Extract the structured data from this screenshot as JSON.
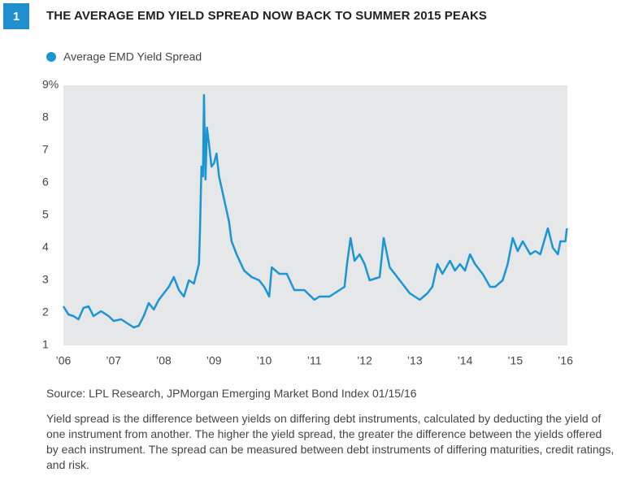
{
  "figure_number": "1",
  "chart_data": {
    "type": "line",
    "title": "THE AVERAGE EMD YIELD SPREAD NOW BACK TO SUMMER 2015 PEAKS",
    "source": "Source: LPL Research, JPMorgan Emerging Market Bond Index   01/15/16",
    "note": "Yield spread is the difference between yields on differing debt instruments, calculated by deducting the yield of one instrument from another. The higher the yield spread, the greater the difference between the yields offered by each instrument. The spread can be measured between debt instruments of differing maturities, credit ratings, and risk.",
    "x": [
      2006.0,
      2006.1,
      2006.2,
      2006.3,
      2006.4,
      2006.5,
      2006.6,
      2006.75,
      2006.9,
      2007.0,
      2007.15,
      2007.3,
      2007.4,
      2007.5,
      2007.6,
      2007.7,
      2007.8,
      2007.9,
      2008.0,
      2008.1,
      2008.2,
      2008.3,
      2008.4,
      2008.5,
      2008.6,
      2008.7,
      2008.72,
      2008.75,
      2008.78,
      2008.8,
      2008.83,
      2008.86,
      2008.9,
      2008.95,
      2009.0,
      2009.05,
      2009.1,
      2009.2,
      2009.3,
      2009.35,
      2009.45,
      2009.6,
      2009.75,
      2009.9,
      2010.0,
      2010.1,
      2010.15,
      2010.3,
      2010.45,
      2010.6,
      2010.8,
      2011.0,
      2011.1,
      2011.3,
      2011.5,
      2011.6,
      2011.65,
      2011.72,
      2011.8,
      2011.9,
      2012.0,
      2012.1,
      2012.3,
      2012.38,
      2012.5,
      2012.7,
      2012.8,
      2012.9,
      2013.0,
      2013.1,
      2013.25,
      2013.35,
      2013.45,
      2013.55,
      2013.7,
      2013.8,
      2013.9,
      2014.0,
      2014.1,
      2014.2,
      2014.35,
      2014.5,
      2014.6,
      2014.75,
      2014.85,
      2014.95,
      2015.05,
      2015.15,
      2015.3,
      2015.4,
      2015.5,
      2015.65,
      2015.75,
      2015.85,
      2015.9,
      2016.0,
      2016.03
    ],
    "series": [
      {
        "name": "Average EMD Yield Spread",
        "color": "#1a96d4",
        "values": [
          2.2,
          1.95,
          1.9,
          1.8,
          2.15,
          2.2,
          1.9,
          2.05,
          1.9,
          1.75,
          1.8,
          1.65,
          1.55,
          1.6,
          1.9,
          2.3,
          2.1,
          2.4,
          2.6,
          2.8,
          3.1,
          2.7,
          2.5,
          3.0,
          2.9,
          3.5,
          4.5,
          6.5,
          6.2,
          8.7,
          6.1,
          7.7,
          7.2,
          6.5,
          6.6,
          6.9,
          6.2,
          5.5,
          4.8,
          4.2,
          3.8,
          3.3,
          3.1,
          3.0,
          2.8,
          2.5,
          3.4,
          3.2,
          3.2,
          2.7,
          2.7,
          2.4,
          2.5,
          2.5,
          2.7,
          2.8,
          3.5,
          4.3,
          3.6,
          3.8,
          3.5,
          3.0,
          3.1,
          4.3,
          3.4,
          3.0,
          2.8,
          2.6,
          2.5,
          2.4,
          2.6,
          2.8,
          3.5,
          3.2,
          3.6,
          3.3,
          3.5,
          3.3,
          3.8,
          3.5,
          3.2,
          2.8,
          2.8,
          3.0,
          3.5,
          4.3,
          3.9,
          4.2,
          3.8,
          3.9,
          3.8,
          4.6,
          4.0,
          3.8,
          4.2,
          4.2,
          4.6
        ]
      }
    ],
    "xlim": [
      2006,
      2016.04
    ],
    "xticks": [
      {
        "value": 2006,
        "label": "’06"
      },
      {
        "value": 2007,
        "label": "’07"
      },
      {
        "value": 2008,
        "label": "’08"
      },
      {
        "value": 2009,
        "label": "’09"
      },
      {
        "value": 2010,
        "label": "’10"
      },
      {
        "value": 2011,
        "label": "’11"
      },
      {
        "value": 2012,
        "label": "’12"
      },
      {
        "value": 2013,
        "label": "’13"
      },
      {
        "value": 2014,
        "label": "’14"
      },
      {
        "value": 2015,
        "label": "’15"
      },
      {
        "value": 2016,
        "label": "’16"
      }
    ],
    "ylim": [
      1,
      9
    ],
    "yticks": [
      1,
      2,
      3,
      4,
      5,
      6,
      7,
      8,
      {
        "value": 9,
        "label": "9%"
      }
    ],
    "background": "#e6e7e8"
  }
}
